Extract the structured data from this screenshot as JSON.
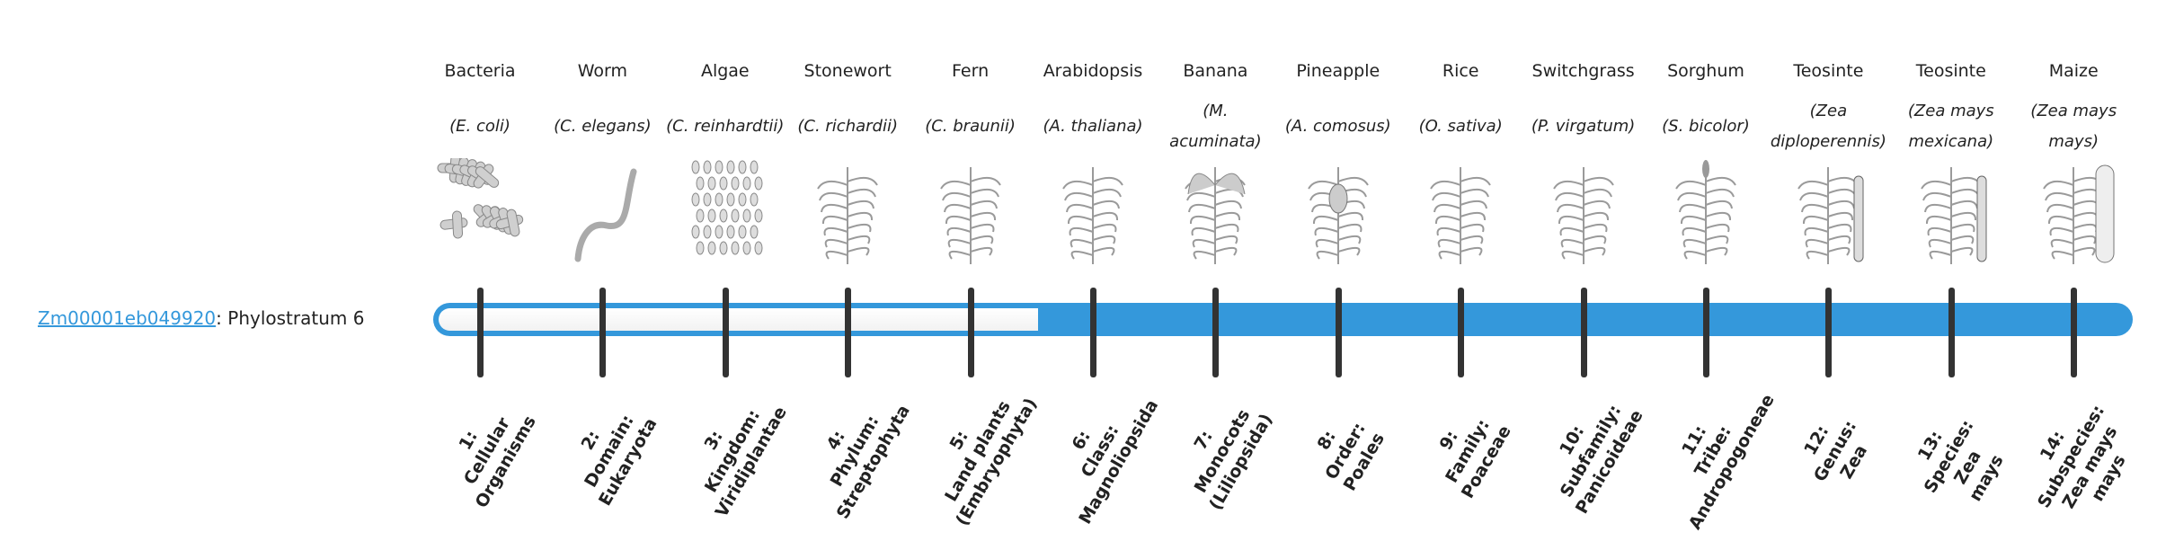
{
  "gene": {
    "id": "Zm00001eb049920",
    "separator": ":",
    "stratum": " Phylostratum 6"
  },
  "colors": {
    "bar": "#3498db",
    "tick": "#333333",
    "link": "#3498db"
  },
  "progress": {
    "phylostratum": 6,
    "total": 14
  },
  "strata": [
    {
      "common": "Bacteria",
      "species": "(E. coli)",
      "image": "bacteria-illustration",
      "label": [
        "1:",
        "Cellular",
        "Organisms"
      ]
    },
    {
      "common": "Worm",
      "species": "(C. elegans)",
      "image": "worm-illustration",
      "label": [
        "2:",
        "Domain:",
        "Eukaryota"
      ]
    },
    {
      "common": "Algae",
      "species": "(C. reinhardtii)",
      "image": "algae-illustration",
      "label": [
        "3:",
        "Kingdom:",
        "Viridiplantae"
      ]
    },
    {
      "common": "Stonewort",
      "species": "(C. richardii)",
      "image": "stonewort-illustration",
      "label": [
        "4:",
        "Phylum:",
        "Streptophyta"
      ]
    },
    {
      "common": "Fern",
      "species": "(C. braunii)",
      "image": "fern-illustration",
      "label": [
        "5:",
        "Land plants",
        "(Embryophyta)"
      ]
    },
    {
      "common": "Arabidopsis",
      "species": "(A. thaliana)",
      "image": "arabidopsis-illustration",
      "label": [
        "6:",
        "Class:",
        "Magnoliopsida"
      ]
    },
    {
      "common": "Banana",
      "species": "(M. acuminata)",
      "image": "banana-illustration",
      "label": [
        "7:",
        "Monocots",
        "(Liliopsida)"
      ]
    },
    {
      "common": "Pineapple",
      "species": "(A. comosus)",
      "image": "pineapple-illustration",
      "label": [
        "8:",
        "Order:",
        "Poales"
      ]
    },
    {
      "common": "Rice",
      "species": "(O. sativa)",
      "image": "rice-illustration",
      "label": [
        "9:",
        "Family:",
        "Poaceae"
      ]
    },
    {
      "common": "Switchgrass",
      "species": "(P. virgatum)",
      "image": "switchgrass-illustration",
      "label": [
        "10:",
        "Subfamily:",
        "Panicoideae"
      ]
    },
    {
      "common": "Sorghum",
      "species": "(S. bicolor)",
      "image": "sorghum-illustration",
      "label": [
        "11:",
        "Tribe:",
        "Andropogoneae"
      ]
    },
    {
      "common": "Teosinte",
      "species": "(Zea diploperennis)",
      "image": "teosinte-illustration",
      "label": [
        "12:",
        "Genus:",
        "Zea"
      ]
    },
    {
      "common": "Teosinte",
      "species": "(Zea mays mexicana)",
      "image": "teosinte-illustration",
      "label": [
        "13:",
        "Species:",
        "Zea",
        "mays"
      ]
    },
    {
      "common": "Maize",
      "species": "(Zea mays mays)",
      "image": "maize-illustration",
      "label": [
        "14:",
        "Subspecies:",
        "Zea mays",
        "mays"
      ]
    }
  ]
}
